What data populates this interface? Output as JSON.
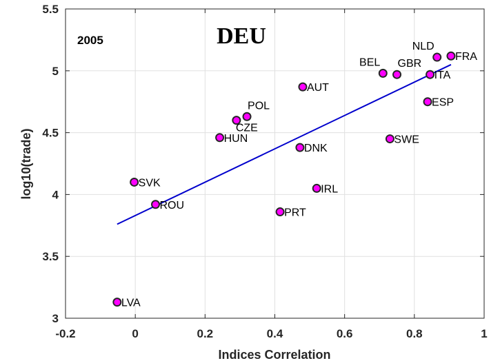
{
  "chart_data": {
    "type": "scatter",
    "title": "DEU",
    "annotation": "2005",
    "xlabel": "Indices Correlation",
    "ylabel": "log10(trade)",
    "xlim": [
      -0.2,
      1.0
    ],
    "ylim": [
      3.0,
      5.5
    ],
    "xticks": [
      -0.2,
      0,
      0.2,
      0.4,
      0.6,
      0.8,
      1
    ],
    "xtick_labels": [
      "-0.2",
      "0",
      "0.2",
      "0.4",
      "0.6",
      "0.8",
      "1"
    ],
    "yticks": [
      3,
      3.5,
      4,
      4.5,
      5,
      5.5
    ],
    "ytick_labels": [
      "3",
      "3.5",
      "4",
      "4.5",
      "5",
      "5.5"
    ],
    "grid": true,
    "colors": {
      "marker_fill": "#ff00ff",
      "marker_edge": "#262626",
      "fit_line": "#0000cc",
      "grid": "#e0e0e0",
      "axis": "#262626"
    },
    "points": [
      {
        "label": "FRA",
        "x": 0.905,
        "y": 5.12,
        "pos": "right"
      },
      {
        "label": "NLD",
        "x": 0.865,
        "y": 5.11,
        "pos": "upper-left"
      },
      {
        "label": "ITA",
        "x": 0.845,
        "y": 4.97,
        "pos": "right"
      },
      {
        "label": "ESP",
        "x": 0.838,
        "y": 4.75,
        "pos": "right"
      },
      {
        "label": "GBR",
        "x": 0.75,
        "y": 4.97,
        "pos": "upper-right"
      },
      {
        "label": "BEL",
        "x": 0.71,
        "y": 4.98,
        "pos": "upper-left"
      },
      {
        "label": "SWE",
        "x": 0.73,
        "y": 4.45,
        "pos": "right"
      },
      {
        "label": "AUT",
        "x": 0.48,
        "y": 4.87,
        "pos": "right"
      },
      {
        "label": "DNK",
        "x": 0.472,
        "y": 4.38,
        "pos": "right"
      },
      {
        "label": "IRL",
        "x": 0.52,
        "y": 4.05,
        "pos": "right"
      },
      {
        "label": "PRT",
        "x": 0.415,
        "y": 3.86,
        "pos": "right"
      },
      {
        "label": "POL",
        "x": 0.32,
        "y": 4.63,
        "pos": "upper-right"
      },
      {
        "label": "CZE",
        "x": 0.29,
        "y": 4.6,
        "pos": "lower-right"
      },
      {
        "label": "HUN",
        "x": 0.242,
        "y": 4.46,
        "pos": "right"
      },
      {
        "label": "SVK",
        "x": -0.003,
        "y": 4.1,
        "pos": "right"
      },
      {
        "label": "ROU",
        "x": 0.058,
        "y": 3.92,
        "pos": "right"
      },
      {
        "label": "LVA",
        "x": -0.052,
        "y": 3.13,
        "pos": "right"
      }
    ],
    "fit_line": {
      "x": [
        -0.052,
        0.905
      ],
      "y": [
        3.76,
        5.05
      ]
    }
  }
}
